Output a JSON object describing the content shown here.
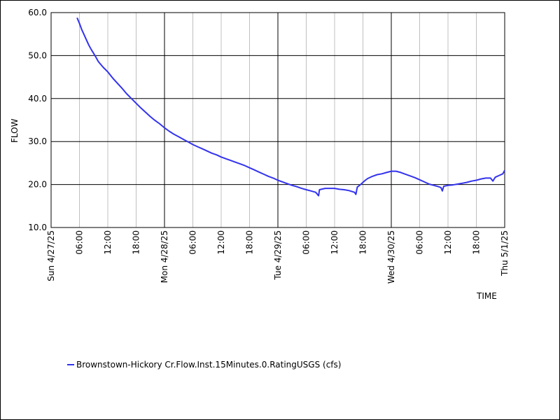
{
  "chart_data": {
    "type": "line",
    "xlabel": "TIME",
    "ylabel": "FLOW",
    "ylim": [
      10.0,
      60.0
    ],
    "yticks": [
      "10.0",
      "20.0",
      "30.0",
      "40.0",
      "50.0",
      "60.0"
    ],
    "xlim_hours": [
      0,
      96
    ],
    "xticks": [
      {
        "hour": 0,
        "label": "Sun 4/27/25",
        "major": true
      },
      {
        "hour": 6,
        "label": "06:00",
        "major": false
      },
      {
        "hour": 12,
        "label": "12:00",
        "major": false
      },
      {
        "hour": 18,
        "label": "18:00",
        "major": false
      },
      {
        "hour": 24,
        "label": "Mon 4/28/25",
        "major": true
      },
      {
        "hour": 30,
        "label": "06:00",
        "major": false
      },
      {
        "hour": 36,
        "label": "12:00",
        "major": false
      },
      {
        "hour": 42,
        "label": "18:00",
        "major": false
      },
      {
        "hour": 48,
        "label": "Tue 4/29/25",
        "major": true
      },
      {
        "hour": 54,
        "label": "06:00",
        "major": false
      },
      {
        "hour": 60,
        "label": "12:00",
        "major": false
      },
      {
        "hour": 66,
        "label": "18:00",
        "major": false
      },
      {
        "hour": 72,
        "label": "Wed 4/30/25",
        "major": true
      },
      {
        "hour": 78,
        "label": "06:00",
        "major": false
      },
      {
        "hour": 84,
        "label": "12:00",
        "major": false
      },
      {
        "hour": 90,
        "label": "18:00",
        "major": false
      },
      {
        "hour": 96,
        "label": "Thu 5/1/25",
        "major": true
      }
    ],
    "grid": true,
    "legend_position": "bottom-left",
    "series": [
      {
        "name": "Brownstown-Hickory Cr.Flow.Inst.15Minutes.0.RatingUSGS (cfs)",
        "color": "#3333ee",
        "points": [
          [
            5.5,
            58.8
          ],
          [
            6,
            57.5
          ],
          [
            6.5,
            56.0
          ],
          [
            7,
            54.8
          ],
          [
            7.5,
            53.6
          ],
          [
            8,
            52.4
          ],
          [
            8.5,
            51.4
          ],
          [
            9,
            50.5
          ],
          [
            9.5,
            49.6
          ],
          [
            10,
            48.6
          ],
          [
            11,
            47.3
          ],
          [
            12,
            46.2
          ],
          [
            13,
            44.8
          ],
          [
            14,
            43.6
          ],
          [
            15,
            42.4
          ],
          [
            16,
            41.1
          ],
          [
            17,
            40.0
          ],
          [
            18,
            38.9
          ],
          [
            19,
            37.8
          ],
          [
            20,
            36.8
          ],
          [
            21,
            35.8
          ],
          [
            22,
            34.9
          ],
          [
            23,
            34.1
          ],
          [
            24,
            33.2
          ],
          [
            25,
            32.4
          ],
          [
            26,
            31.7
          ],
          [
            27,
            31.1
          ],
          [
            28,
            30.5
          ],
          [
            29,
            29.9
          ],
          [
            30,
            29.3
          ],
          [
            31,
            28.8
          ],
          [
            32,
            28.3
          ],
          [
            33,
            27.8
          ],
          [
            34,
            27.3
          ],
          [
            35,
            26.9
          ],
          [
            36,
            26.4
          ],
          [
            37,
            26.0
          ],
          [
            38,
            25.6
          ],
          [
            39,
            25.2
          ],
          [
            40,
            24.8
          ],
          [
            41,
            24.4
          ],
          [
            42,
            23.9
          ],
          [
            43,
            23.4
          ],
          [
            44,
            22.9
          ],
          [
            45,
            22.4
          ],
          [
            46,
            21.9
          ],
          [
            47,
            21.5
          ],
          [
            48,
            21.0
          ],
          [
            49,
            20.6
          ],
          [
            50,
            20.2
          ],
          [
            51,
            19.8
          ],
          [
            52,
            19.5
          ],
          [
            53,
            19.1
          ],
          [
            54,
            18.8
          ],
          [
            55,
            18.5
          ],
          [
            56,
            18.2
          ],
          [
            56.6,
            17.4
          ],
          [
            56.8,
            18.8
          ],
          [
            58,
            19.1
          ],
          [
            59,
            19.1
          ],
          [
            60,
            19.1
          ],
          [
            61,
            18.9
          ],
          [
            62,
            18.8
          ],
          [
            63,
            18.6
          ],
          [
            64.2,
            18.2
          ],
          [
            64.5,
            17.7
          ],
          [
            64.8,
            19.4
          ],
          [
            65.5,
            20.0
          ],
          [
            66,
            20.5
          ],
          [
            66.5,
            21.0
          ],
          [
            67,
            21.4
          ],
          [
            68,
            21.9
          ],
          [
            69,
            22.3
          ],
          [
            70,
            22.5
          ],
          [
            71,
            22.8
          ],
          [
            72,
            23.1
          ],
          [
            73,
            23.1
          ],
          [
            74,
            22.8
          ],
          [
            75,
            22.4
          ],
          [
            76,
            22.0
          ],
          [
            77,
            21.6
          ],
          [
            78,
            21.1
          ],
          [
            79,
            20.6
          ],
          [
            80,
            20.1
          ],
          [
            81,
            19.8
          ],
          [
            82,
            19.5
          ],
          [
            82.5,
            19.3
          ],
          [
            82.8,
            18.5
          ],
          [
            83.1,
            19.6
          ],
          [
            84,
            19.8
          ],
          [
            85,
            19.9
          ],
          [
            86,
            20.1
          ],
          [
            87,
            20.3
          ],
          [
            88,
            20.5
          ],
          [
            89,
            20.8
          ],
          [
            90,
            21.0
          ],
          [
            91,
            21.3
          ],
          [
            92,
            21.5
          ],
          [
            93,
            21.5
          ],
          [
            93.5,
            20.8
          ],
          [
            94,
            21.7
          ],
          [
            95,
            22.2
          ],
          [
            95.6,
            22.5
          ],
          [
            96,
            23.3
          ]
        ]
      }
    ]
  }
}
